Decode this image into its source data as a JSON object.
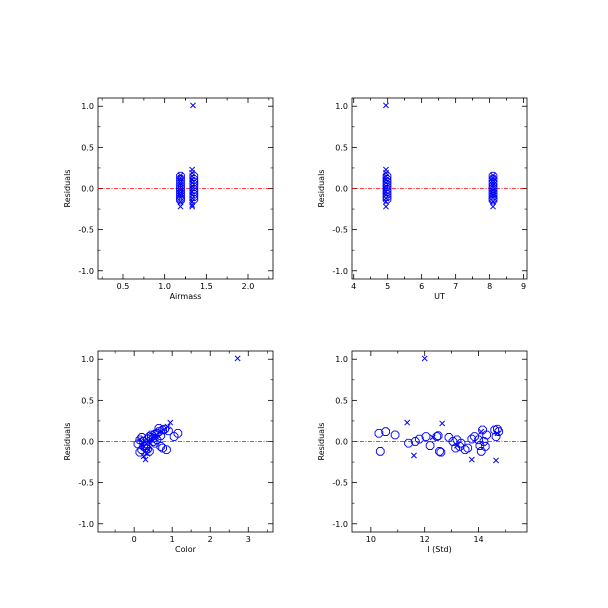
{
  "chart_data": [
    {
      "type": "scatter",
      "xlabel": "Airmass",
      "ylabel": "Residuals",
      "xlim": [
        0.2,
        2.3
      ],
      "ylim": [
        -1.1,
        1.1
      ],
      "x_ticks": [
        "0.5",
        "1.0",
        "1.5",
        "2.0"
      ],
      "y_ticks": [
        "1.0",
        "0.5",
        "0.0",
        "-0.5",
        "-1.0"
      ],
      "reference_line": 0.0,
      "colors": {
        "points": "#0000ff",
        "reference_line": "#ff0000",
        "axes": "#000000"
      },
      "series": [
        {
          "marker": "x",
          "x": [
            1.19,
            1.19,
            1.19,
            1.19,
            1.19,
            1.19,
            1.19,
            1.19,
            1.19,
            1.19,
            1.19,
            1.19,
            1.33,
            1.33,
            1.33,
            1.33,
            1.33,
            1.33,
            1.33,
            1.33,
            1.33,
            1.33,
            1.33,
            1.33,
            1.33,
            1.34
          ],
          "y": [
            0.16,
            0.13,
            0.1,
            0.07,
            0.04,
            0.01,
            -0.02,
            -0.05,
            -0.08,
            -0.11,
            -0.16,
            -0.22,
            0.23,
            0.19,
            0.15,
            0.11,
            0.07,
            0.03,
            0.0,
            -0.04,
            -0.08,
            -0.12,
            -0.16,
            -0.2,
            -0.22,
            1.01
          ]
        },
        {
          "marker": "o",
          "x": [
            1.19,
            1.19,
            1.19,
            1.19,
            1.19,
            1.19,
            1.19,
            1.19,
            1.19,
            1.19,
            1.35,
            1.35,
            1.35,
            1.35,
            1.35,
            1.35,
            1.35,
            1.35,
            1.35,
            1.35
          ],
          "y": [
            0.15,
            0.11,
            0.07,
            0.03,
            0.0,
            -0.03,
            -0.06,
            -0.09,
            -0.12,
            -0.14,
            0.15,
            0.11,
            0.08,
            0.05,
            0.02,
            -0.01,
            -0.04,
            -0.07,
            -0.1,
            -0.13
          ]
        }
      ]
    },
    {
      "type": "scatter",
      "xlabel": "UT",
      "ylabel": "Residuals",
      "xlim": [
        3.95,
        9.1
      ],
      "ylim": [
        -1.1,
        1.1
      ],
      "x_ticks": [
        "4",
        "5",
        "6",
        "7",
        "8",
        "9"
      ],
      "y_ticks": [
        "1.0",
        "0.5",
        "0.0",
        "-0.5",
        "-1.0"
      ],
      "reference_line": 0.0,
      "colors": {
        "points": "#0000ff",
        "reference_line": "#ff0000",
        "axes": "#000000"
      },
      "series": [
        {
          "marker": "x",
          "x": [
            4.95,
            4.95,
            4.95,
            4.95,
            4.95,
            4.95,
            4.95,
            4.95,
            4.95,
            4.95,
            4.95,
            4.95,
            4.95,
            8.1,
            8.1,
            8.1,
            8.1,
            8.1,
            8.1,
            8.1,
            8.1,
            8.1,
            8.1,
            8.1,
            8.1
          ],
          "y": [
            1.01,
            0.23,
            0.19,
            0.15,
            0.11,
            0.07,
            0.03,
            0.0,
            -0.04,
            -0.08,
            -0.12,
            -0.16,
            -0.22,
            0.16,
            0.13,
            0.1,
            0.07,
            0.04,
            0.01,
            -0.02,
            -0.05,
            -0.08,
            -0.11,
            -0.16,
            -0.22
          ]
        },
        {
          "marker": "o",
          "x": [
            4.98,
            4.98,
            4.98,
            4.98,
            4.98,
            4.98,
            4.98,
            4.98,
            4.98,
            4.98,
            8.1,
            8.1,
            8.1,
            8.1,
            8.1,
            8.1,
            8.1,
            8.1,
            8.1,
            8.1
          ],
          "y": [
            0.15,
            0.11,
            0.08,
            0.05,
            0.02,
            -0.01,
            -0.04,
            -0.07,
            -0.1,
            -0.13,
            0.15,
            0.11,
            0.07,
            0.03,
            0.0,
            -0.03,
            -0.06,
            -0.09,
            -0.12,
            -0.14
          ]
        }
      ]
    },
    {
      "type": "scatter",
      "xlabel": "Color",
      "ylabel": "Residuals",
      "xlim": [
        -0.95,
        3.65
      ],
      "ylim": [
        -1.1,
        1.1
      ],
      "x_ticks": [
        "0",
        "1",
        "2",
        "3"
      ],
      "y_ticks": [
        "1.0",
        "0.5",
        "0.0",
        "-0.5",
        "-1.0"
      ],
      "reference_line": 0.0,
      "colors": {
        "points": "#0000ff",
        "reference_line": "#ff0000",
        "axes": "#000000"
      },
      "series": [
        {
          "marker": "x",
          "x": [
            2.72,
            0.95,
            0.88,
            0.8,
            0.7,
            0.6,
            0.52,
            0.45,
            0.42,
            0.38,
            0.35,
            0.3,
            0.28,
            0.25,
            0.2,
            0.15
          ],
          "y": [
            1.01,
            0.23,
            0.18,
            0.15,
            0.12,
            0.08,
            0.05,
            0.02,
            -0.02,
            -0.1,
            -0.15,
            -0.22,
            0.0,
            -0.18,
            -0.05,
            0.03
          ]
        },
        {
          "marker": "o",
          "x": [
            0.1,
            0.15,
            0.2,
            0.25,
            0.3,
            0.35,
            0.4,
            0.45,
            0.5,
            0.55,
            0.6,
            0.65,
            0.7,
            0.75,
            0.8,
            0.2,
            0.3,
            0.4,
            0.5,
            0.6,
            0.7,
            0.15,
            0.25,
            0.35,
            0.45,
            0.55,
            1.05,
            1.15,
            0.9,
            0.65,
            0.75,
            0.85
          ],
          "y": [
            -0.03,
            0.02,
            0.05,
            0.0,
            -0.05,
            0.03,
            0.06,
            0.08,
            0.04,
            -0.02,
            0.1,
            0.12,
            0.07,
            0.14,
            0.15,
            -0.1,
            -0.08,
            -0.12,
            0.0,
            0.02,
            -0.06,
            -0.13,
            -0.06,
            -0.09,
            0.05,
            0.09,
            0.06,
            0.1,
            0.13,
            0.16,
            -0.08,
            -0.1
          ]
        }
      ]
    },
    {
      "type": "scatter",
      "xlabel": "I (Std)",
      "ylabel": "Residuals",
      "xlim": [
        9.3,
        15.8
      ],
      "ylim": [
        -1.1,
        1.1
      ],
      "x_ticks": [
        "10",
        "12",
        "14"
      ],
      "y_ticks": [
        "1.0",
        "0.5",
        "0.0",
        "-0.5",
        "-1.0"
      ],
      "reference_line": 0.0,
      "colors": {
        "points": "#0000ff",
        "reference_line": "#ff0000",
        "axes": "#000000"
      },
      "series": [
        {
          "marker": "x",
          "x": [
            12.0,
            11.35,
            11.6,
            12.65,
            14.65,
            13.75,
            12.3,
            13.2,
            14.1,
            14.7
          ],
          "y": [
            1.01,
            0.23,
            -0.17,
            0.22,
            -0.23,
            -0.22,
            0.05,
            -0.05,
            0.12,
            0.1
          ]
        },
        {
          "marker": "o",
          "x": [
            10.3,
            10.55,
            10.9,
            10.35,
            11.4,
            11.65,
            11.8,
            12.2,
            12.45,
            12.55,
            12.6,
            12.9,
            13.05,
            13.15,
            13.2,
            13.3,
            13.35,
            13.5,
            13.75,
            13.85,
            14.0,
            14.1,
            14.15,
            14.25,
            14.3,
            14.6,
            14.65,
            14.7,
            14.75,
            12.05,
            12.5,
            13.6,
            14.05,
            14.2
          ],
          "y": [
            0.1,
            0.12,
            0.08,
            -0.12,
            -0.02,
            0.0,
            0.03,
            -0.05,
            0.06,
            -0.12,
            -0.13,
            0.05,
            0.0,
            -0.08,
            0.02,
            -0.06,
            -0.02,
            -0.1,
            0.03,
            0.06,
            0.02,
            -0.12,
            0.14,
            -0.06,
            0.08,
            0.14,
            0.06,
            0.15,
            0.12,
            0.06,
            0.07,
            -0.08,
            -0.05,
            0.0
          ]
        }
      ]
    }
  ]
}
